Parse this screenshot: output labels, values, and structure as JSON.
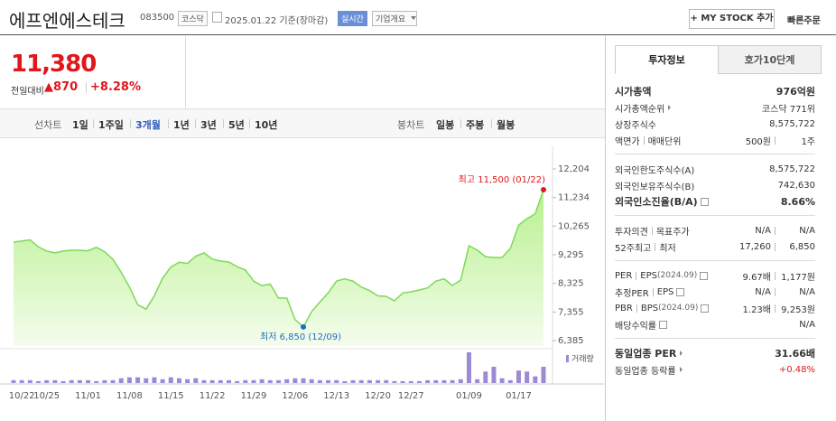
{
  "header": {
    "name": "에프엔에스테크",
    "code": "083500",
    "market": "코스닥",
    "date": "2025.01.22 기준(장마감)",
    "realtime": "실시간",
    "company_info": "기업개요",
    "my_stock": "+ MY STOCK 추가",
    "quick_order": "빠른주문"
  },
  "price": {
    "current": "11,380",
    "change_label": "전일대비",
    "change": "▲870",
    "change_rate": "+8.28%"
  },
  "toolbar": {
    "line_label": "선차트",
    "periods": [
      "1일",
      "1주일",
      "3개월",
      "1년",
      "3년",
      "5년",
      "10년"
    ],
    "selected_period": 2,
    "candle_label": "봉차트",
    "candles": [
      "일봉",
      "주봉",
      "월봉"
    ]
  },
  "chart_data": {
    "type": "line",
    "color": "#7ed957",
    "categories": [
      null,
      "10/22",
      null,
      null,
      "10/25",
      null,
      null,
      null,
      null,
      "11/01",
      null,
      null,
      null,
      null,
      "11/08",
      null,
      null,
      null,
      null,
      "11/15",
      null,
      null,
      null,
      null,
      "11/22",
      null,
      null,
      null,
      null,
      "11/29",
      null,
      null,
      null,
      null,
      "12/06",
      null,
      null,
      null,
      null,
      "12/13",
      null,
      null,
      null,
      null,
      "12/20",
      null,
      null,
      null,
      "12/27",
      null,
      null,
      null,
      null,
      null,
      null,
      "01/09",
      null,
      null,
      null,
      null,
      null,
      "01/17",
      null,
      null,
      null
    ],
    "values": [
      9723,
      9760,
      9800,
      9560,
      9420,
      9356,
      9420,
      9448,
      9448,
      9430,
      9550,
      9400,
      9141,
      8700,
      8200,
      7600,
      7450,
      7900,
      8500,
      8880,
      9040,
      9000,
      9250,
      9356,
      9150,
      9080,
      9050,
      8890,
      8780,
      8400,
      8250,
      8300,
      7824,
      7824,
      7100,
      6850,
      7365,
      7700,
      8000,
      8400,
      8480,
      8400,
      8200,
      8080,
      7900,
      7885,
      7732,
      8000,
      8040,
      8100,
      8170,
      8400,
      8480,
      8250,
      8437,
      9600,
      9450,
      9230,
      9202,
      9202,
      9510,
      10300,
      10520,
      10680,
      11500
    ],
    "ylim": [
      6385,
      12204
    ],
    "yticks": [
      {
        "value": 12204,
        "label": "12,204"
      },
      {
        "value": 11234,
        "label": "11,234"
      },
      {
        "value": 10265,
        "label": "10,265"
      },
      {
        "value": 9295,
        "label": "9,295"
      },
      {
        "value": 8325,
        "label": "8,325"
      },
      {
        "value": 7355,
        "label": "7,355"
      },
      {
        "value": 6385,
        "label": "6,385"
      }
    ],
    "grid": false,
    "annotations": {
      "high": "최고 11,500 (01/22)",
      "low": "최저 6,850 (12/09)"
    },
    "volume": {
      "name": "거래량",
      "color": "#9d8ad6",
      "values": [
        3,
        3,
        3,
        2,
        3,
        3,
        2,
        3,
        3,
        3,
        2,
        3,
        3,
        5,
        6,
        6,
        5,
        6,
        4,
        6,
        5,
        4,
        5,
        3,
        3,
        3,
        3,
        2,
        3,
        3,
        4,
        3,
        3,
        4,
        5,
        5,
        4,
        3,
        3,
        3,
        2,
        3,
        3,
        3,
        3,
        3,
        2,
        2,
        2,
        2,
        3,
        3,
        3,
        3,
        4,
        32,
        4,
        12,
        17,
        5,
        3,
        13,
        12,
        7,
        17
      ]
    }
  },
  "info_panel": {
    "tabs": [
      "투자정보",
      "호가10단계"
    ],
    "selected_tab": 0,
    "sections": [
      [
        {
          "label": [
            "시가총액"
          ],
          "value": [
            "976억원"
          ],
          "bold": true
        },
        {
          "label": [
            "시가총액순위"
          ],
          "value": [
            "코스닥 771위"
          ],
          "link": true
        },
        {
          "label": [
            "상장주식수"
          ],
          "value": [
            "8,575,722"
          ]
        },
        {
          "label": [
            "액면가",
            "매매단위"
          ],
          "value": [
            "500원",
            "1주"
          ]
        }
      ],
      [
        {
          "label": [
            "외국인한도주식수(A)"
          ],
          "value": [
            "8,575,722"
          ]
        },
        {
          "label": [
            "외국인보유주식수(B)"
          ],
          "value": [
            "742,630"
          ]
        },
        {
          "label": [
            "외국인소진율(B/A)"
          ],
          "value": [
            "8.66%"
          ],
          "bold": true,
          "help": true
        }
      ],
      [
        {
          "label": [
            "투자의견",
            "목표주가"
          ],
          "value": [
            "N/A",
            "N/A"
          ]
        },
        {
          "label": [
            "52주최고",
            "최저"
          ],
          "value": [
            "17,260",
            "6,850"
          ]
        }
      ],
      [
        {
          "label": [
            "PER",
            "EPS"
          ],
          "note": "(2024.09)",
          "help": true,
          "value": [
            "9.67배",
            "1,177원"
          ]
        },
        {
          "label": [
            "추정PER",
            "EPS"
          ],
          "help": true,
          "value": [
            "N/A",
            "N/A"
          ]
        },
        {
          "label": [
            "PBR",
            "BPS"
          ],
          "note": "(2024.09)",
          "help": true,
          "value": [
            "1.23배",
            "9,253원"
          ]
        },
        {
          "label": [
            "배당수익률"
          ],
          "help": true,
          "value": [
            "N/A"
          ]
        }
      ],
      [
        {
          "label": [
            "동일업종 PER"
          ],
          "value": [
            "31.66배"
          ],
          "bold": true,
          "link": true
        },
        {
          "label": [
            "동일업종 등락률"
          ],
          "value": [
            "+0.48%"
          ],
          "link": true,
          "up": true
        }
      ]
    ]
  }
}
